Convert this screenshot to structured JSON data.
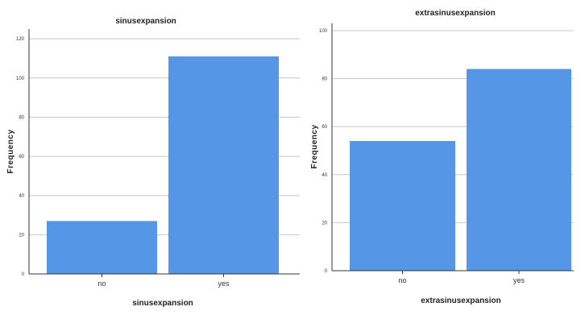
{
  "chart_data": [
    {
      "type": "bar",
      "title": "sinusexpansion",
      "xlabel": "sinusexpansion",
      "ylabel": "Frequency",
      "categories": [
        "no",
        "yes"
      ],
      "values": [
        27,
        111
      ],
      "ylim": [
        0,
        125
      ],
      "yticks": [
        0,
        20,
        40,
        60,
        80,
        100,
        120
      ],
      "grid": true,
      "bar_color": "#5596e6"
    },
    {
      "type": "bar",
      "title": "extrasinusexpansion",
      "xlabel": "extrasinusexpansion",
      "ylabel": "Frequency",
      "categories": [
        "no",
        "yes"
      ],
      "values": [
        54,
        84
      ],
      "ylim": [
        0,
        103
      ],
      "yticks": [
        0,
        20,
        40,
        60,
        80,
        100
      ],
      "grid": true,
      "bar_color": "#5596e6"
    }
  ]
}
